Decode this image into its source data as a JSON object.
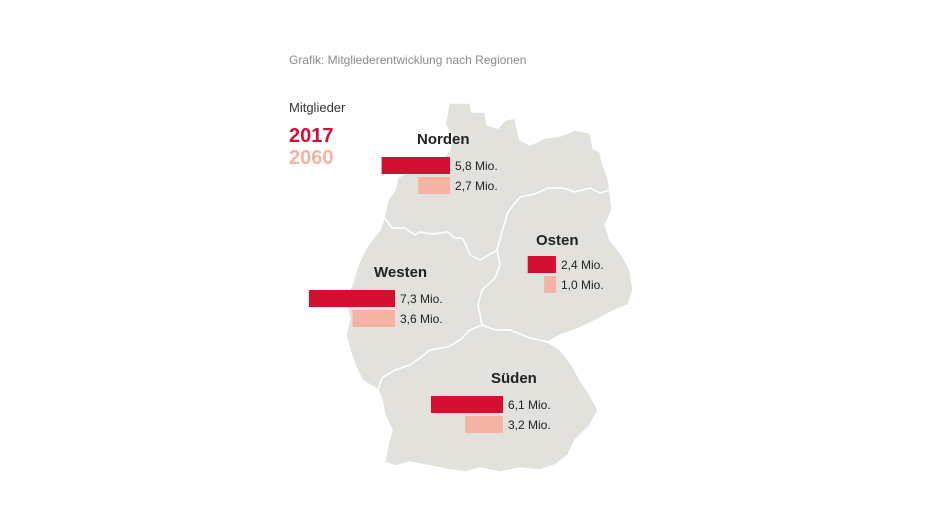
{
  "caption": "Grafik: Mitgliederentwicklung nach Regionen",
  "legend": {
    "title": "Mitglieder",
    "year_a": "2017",
    "year_b": "2060"
  },
  "colors": {
    "year_a": "#d50f32",
    "year_b": "#f5b3a3",
    "map_fill": "#e2e1dc",
    "map_border": "#ffffff"
  },
  "chart_data": {
    "type": "bar",
    "unit": "Mio.",
    "categories": [
      "Norden",
      "Westen",
      "Osten",
      "Süden"
    ],
    "series": [
      {
        "name": "2017",
        "values": [
          5.8,
          7.3,
          2.4,
          6.1
        ],
        "labels": [
          "5,8 Mio.",
          "7,3 Mio.",
          "2,4 Mio.",
          "6,1 Mio."
        ]
      },
      {
        "name": "2060",
        "values": [
          2.7,
          3.6,
          1.0,
          3.2
        ],
        "labels": [
          "2,7 Mio.",
          "3,6 Mio.",
          "1,0 Mio.",
          "3,2 Mio."
        ]
      }
    ]
  }
}
